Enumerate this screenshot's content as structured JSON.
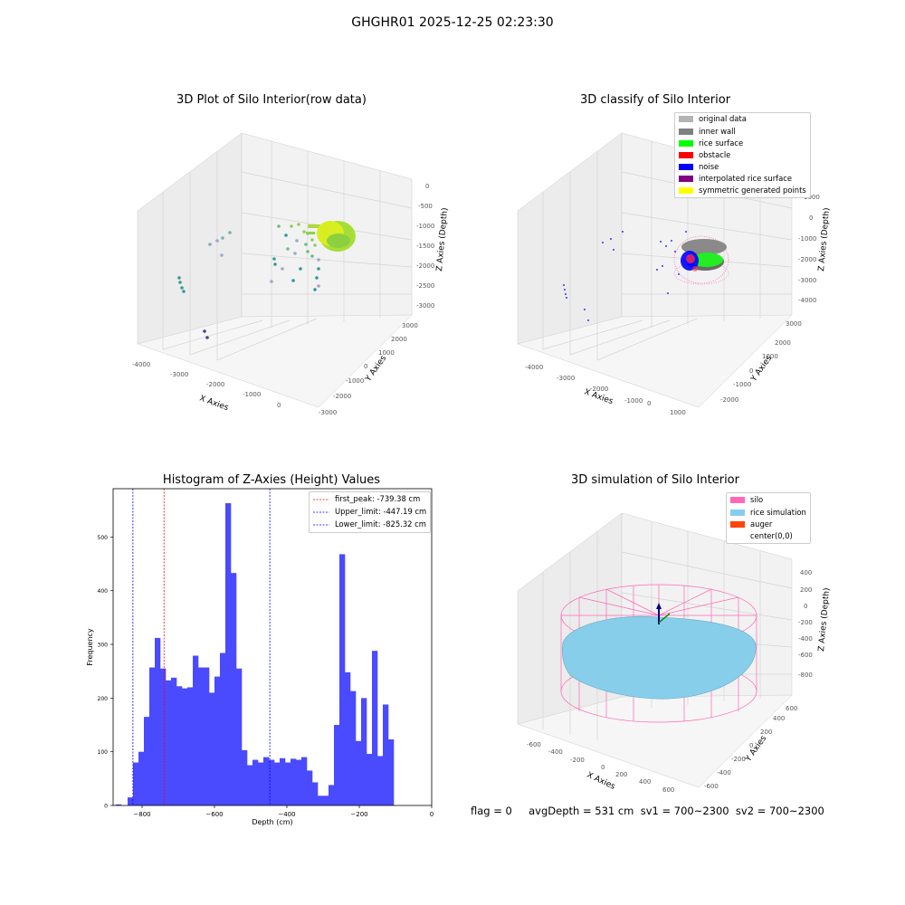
{
  "suptitle": "GHGHR01 2025-12-25 02:23:30",
  "panels": {
    "raw": {
      "title": "3D Plot of Silo Interior(row data)",
      "xlabel": "X Axies",
      "ylabel": "Y Axies",
      "zlabel": "Z Axies (Depth)",
      "xticks": [
        "-4000",
        "-3000",
        "-2000",
        "-1000",
        "0"
      ],
      "yticks": [
        "-3000",
        "-2000",
        "-1000",
        "0",
        "1000",
        "2000",
        "3000"
      ],
      "zticks": [
        "0",
        "-500",
        "-1000",
        "-1500",
        "-2000",
        "-2500",
        "-3000"
      ]
    },
    "classify": {
      "title": "3D classify of Silo Interior",
      "xlabel": "X Axies",
      "ylabel": "Y Axies",
      "zlabel": "Z Axies (Depth)",
      "xticks": [
        "-4000",
        "-3000",
        "-2000",
        "-1000",
        "0",
        "1000"
      ],
      "yticks": [
        "-2000",
        "-1000",
        "0",
        "1000",
        "2000",
        "3000"
      ],
      "zticks": [
        "1000",
        "0",
        "-1000",
        "-2000",
        "-3000",
        "-4000"
      ],
      "legend": [
        {
          "label": "original data",
          "color": "#b3b3b3"
        },
        {
          "label": "inner wall",
          "color": "#808080"
        },
        {
          "label": "rice surface",
          "color": "#00ff00"
        },
        {
          "label": "obstacle",
          "color": "#ff0000"
        },
        {
          "label": "noise",
          "color": "#0000ff"
        },
        {
          "label": "interpolated rice surface",
          "color": "#800080"
        },
        {
          "label": "symmetric generated points",
          "color": "#ffff00"
        }
      ]
    },
    "simulation": {
      "title": "3D simulation of Silo Interior",
      "xlabel": "X Axies",
      "ylabel": "Y Axies",
      "zlabel": "Z Axies (Depth)",
      "xticks": [
        "-600",
        "-400",
        "-200",
        "0",
        "200",
        "400",
        "600"
      ],
      "yticks": [
        "-600",
        "-400",
        "-200",
        "0",
        "200",
        "400",
        "600"
      ],
      "zticks": [
        "400",
        "200",
        "0",
        "-200",
        "-400",
        "-600",
        "-800"
      ],
      "legend": [
        {
          "label": "silo",
          "color": "#ff69b4"
        },
        {
          "label": "rice simulation",
          "color": "#87ceeb"
        },
        {
          "label": "auger",
          "color": "#ff4500"
        },
        {
          "label": "center(0,0)",
          "color": ""
        }
      ]
    }
  },
  "status_text": "flag = 0     avgDepth = 531 cm  sv1 = 700~2300  sv2 = 700~2300",
  "chart_data": {
    "type": "bar",
    "title": "Histogram of Z-Axies (Height) Values",
    "xlabel": "Depth (cm)",
    "ylabel": "Frequency",
    "xlim": [
      -880,
      0
    ],
    "ylim": [
      0,
      590
    ],
    "xticks": [
      -800,
      -600,
      -400,
      -200,
      0
    ],
    "yticks": [
      0,
      100,
      200,
      300,
      400,
      500
    ],
    "bin_width": 15,
    "bin_start": -840,
    "values": [
      15,
      80,
      100,
      165,
      257,
      312,
      255,
      233,
      238,
      222,
      218,
      220,
      279,
      257,
      257,
      210,
      240,
      284,
      563,
      433,
      255,
      103,
      75,
      85,
      80,
      90,
      85,
      80,
      88,
      80,
      87,
      85,
      90,
      65,
      43,
      18,
      18,
      38,
      150,
      468,
      248,
      213,
      120,
      200,
      96,
      288,
      92,
      188,
      123
    ],
    "small_bar": {
      "x": -865,
      "value": 2
    },
    "lines": [
      {
        "label": "first_peak: -739.38 cm",
        "x": -739.38,
        "color": "#ff0000"
      },
      {
        "label": "Upper_limit: -447.19 cm",
        "x": -447.19,
        "color": "#0000ff"
      },
      {
        "label": "Lower_limit: -825.32 cm",
        "x": -825.32,
        "color": "#0000ff"
      }
    ],
    "bar_color": "#4a4aff"
  }
}
